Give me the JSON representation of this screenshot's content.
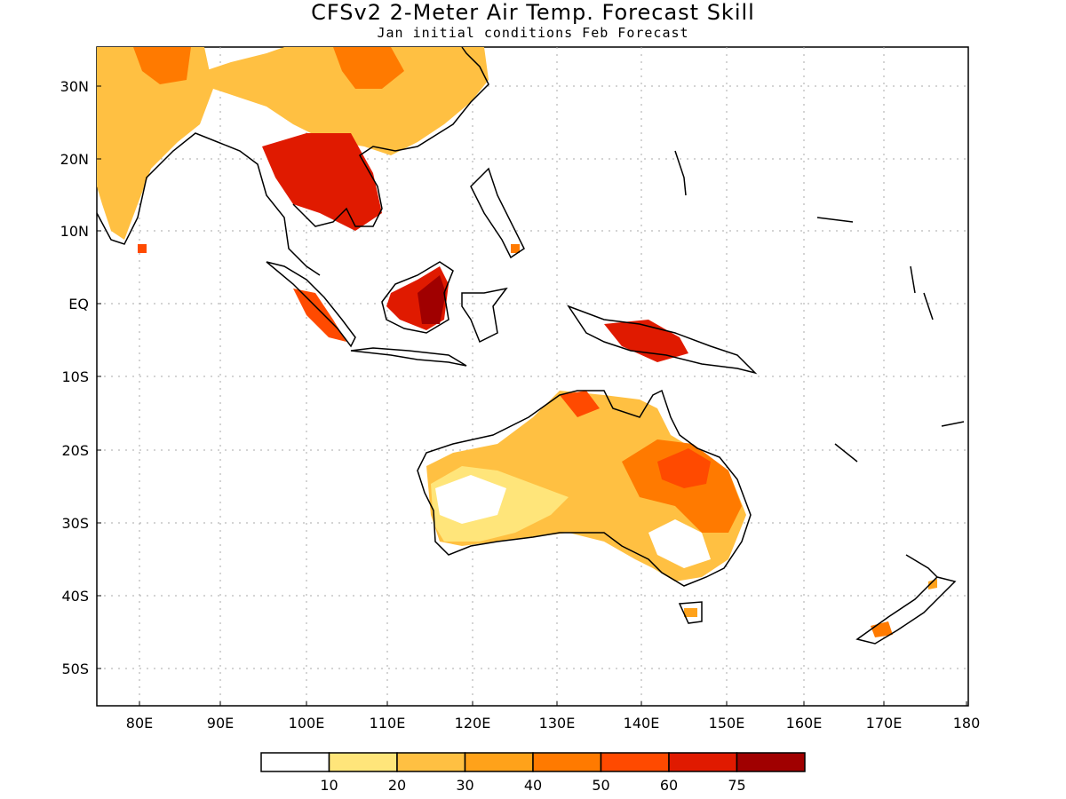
{
  "title": "CFSv2 2-Meter Air Temp. Forecast Skill",
  "subtitle": "Jan initial conditions  Feb Forecast",
  "lat_ticks": [
    "30N",
    "20N",
    "10N",
    "EQ",
    "10S",
    "20S",
    "30S",
    "40S",
    "50S"
  ],
  "lon_ticks": [
    "80E",
    "90E",
    "100E",
    "110E",
    "120E",
    "130E",
    "140E",
    "150E",
    "160E",
    "170E",
    "180"
  ],
  "colorbar": {
    "labels": [
      "10",
      "20",
      "30",
      "40",
      "50",
      "60",
      "75"
    ],
    "colors": [
      "#ffffff",
      "#ffe57a",
      "#ffc042",
      "#ffa21a",
      "#ff7a00",
      "#ff4a00",
      "#e01a00",
      "#a00000"
    ]
  }
}
